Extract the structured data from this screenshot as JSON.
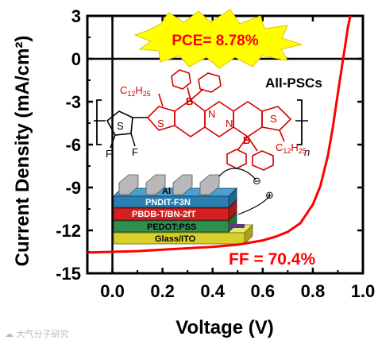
{
  "chart_data": {
    "type": "line",
    "xlabel": "Voltage (V)",
    "ylabel": "Current Density (mA/cm²)",
    "xlim": [
      -0.1,
      1.0
    ],
    "ylim": [
      -15,
      3
    ],
    "x_ticks": [
      "0.0",
      "0.2",
      "0.4",
      "0.6",
      "0.8",
      "1.0"
    ],
    "y_ticks": [
      "3",
      "0",
      "-3",
      "-6",
      "-9",
      "-12",
      "-15"
    ],
    "series": [
      {
        "color": "#ff0000",
        "x": [
          -0.1,
          0.0,
          0.1,
          0.2,
          0.3,
          0.4,
          0.5,
          0.6,
          0.65,
          0.7,
          0.75,
          0.8,
          0.83,
          0.86,
          0.88,
          0.9,
          0.92,
          0.93,
          0.94,
          0.95
        ],
        "y": [
          -13.55,
          -13.5,
          -13.45,
          -13.35,
          -13.25,
          -13.15,
          -13.0,
          -12.7,
          -12.45,
          -12.1,
          -11.5,
          -10.2,
          -8.9,
          -6.8,
          -4.8,
          -2.4,
          -0.1,
          1.0,
          2.2,
          3.0
        ]
      }
    ],
    "annotations": {
      "pce": "PCE= 8.78%",
      "ff": "FF = 70.4%",
      "device": "All-PSCs"
    },
    "reference_lines": {
      "zero_y": 0,
      "zero_x": 0
    }
  },
  "inset": {
    "molecule": {
      "alkyl_top": "C",
      "alkyl_top_sub": "12",
      "alkyl_top_h": "H",
      "alkyl_top_hsub": "25",
      "alkyl_bottom": "C",
      "alkyl_bottom_sub": "12",
      "alkyl_bottom_h": "H",
      "alkyl_bottom_hsub": "25",
      "boron": "B",
      "nitrogen": "N",
      "sulfur": "S",
      "fluorine": "F",
      "repeat": "n"
    },
    "layers": [
      "Al",
      "PNDIT-F3N",
      "PBDB-T/BN-2fT",
      "PEDOT:PSS",
      "Glass/ITO"
    ],
    "electrodes": [
      "⊖",
      "⊕"
    ]
  },
  "watermark": "☁ 大气分子研究",
  "colors": {
    "curve": "#ff0000",
    "pce_star": "#ffff00",
    "pce_text": "#ff0000",
    "ff_text": "#ff0000",
    "layer_al": "#b8b8b8",
    "layer_pndit": "#2a7fb0",
    "layer_pbdb": "#d42020",
    "layer_pedot": "#2f8f4e",
    "layer_glass": "#d8d02a"
  }
}
